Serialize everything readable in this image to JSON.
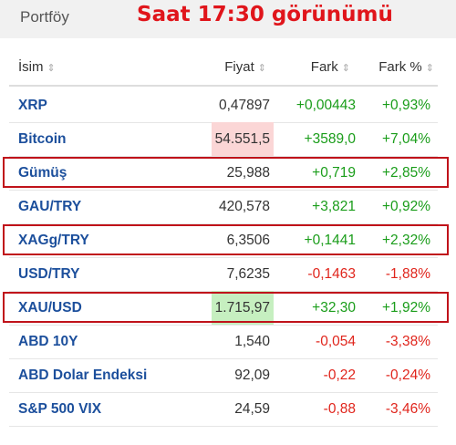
{
  "header": {
    "title": "Portföy",
    "caption": "Saat 17:30 görünümü"
  },
  "columns": {
    "name": "İsim",
    "price": "Fiyat",
    "change": "Fark",
    "pct": "Fark %"
  },
  "rows": [
    {
      "name": "XRP",
      "price": "0,47897",
      "change": "+0,00443",
      "pct": "+0,93%",
      "direction": "pos",
      "price_highlight": "",
      "boxed": false
    },
    {
      "name": "Bitcoin",
      "price": "54.551,5",
      "change": "+3589,0",
      "pct": "+7,04%",
      "direction": "pos",
      "price_highlight": "red",
      "boxed": false
    },
    {
      "name": "Gümüş",
      "price": "25,988",
      "change": "+0,719",
      "pct": "+2,85%",
      "direction": "pos",
      "price_highlight": "",
      "boxed": true
    },
    {
      "name": "GAU/TRY",
      "price": "420,578",
      "change": "+3,821",
      "pct": "+0,92%",
      "direction": "pos",
      "price_highlight": "",
      "boxed": false
    },
    {
      "name": "XAGg/TRY",
      "price": "6,3506",
      "change": "+0,1441",
      "pct": "+2,32%",
      "direction": "pos",
      "price_highlight": "",
      "boxed": true
    },
    {
      "name": "USD/TRY",
      "price": "7,6235",
      "change": "-0,1463",
      "pct": "-1,88%",
      "direction": "neg",
      "price_highlight": "",
      "boxed": false
    },
    {
      "name": "XAU/USD",
      "price": "1.715,97",
      "change": "+32,30",
      "pct": "+1,92%",
      "direction": "pos",
      "price_highlight": "green",
      "boxed": true
    },
    {
      "name": "ABD 10Y",
      "price": "1,540",
      "change": "-0,054",
      "pct": "-3,38%",
      "direction": "neg",
      "price_highlight": "",
      "boxed": false
    },
    {
      "name": "ABD Dolar Endeksi",
      "price": "92,09",
      "change": "-0,22",
      "pct": "-0,24%",
      "direction": "neg",
      "price_highlight": "",
      "boxed": false
    },
    {
      "name": "S&P 500 VIX",
      "price": "24,59",
      "change": "-0,88",
      "pct": "-3,46%",
      "direction": "neg",
      "price_highlight": "",
      "boxed": false
    }
  ],
  "colors": {
    "positive": "#1a9d1a",
    "negative": "#e0251c",
    "name_link": "#1c4f9c",
    "annotation": "#c0121a"
  }
}
